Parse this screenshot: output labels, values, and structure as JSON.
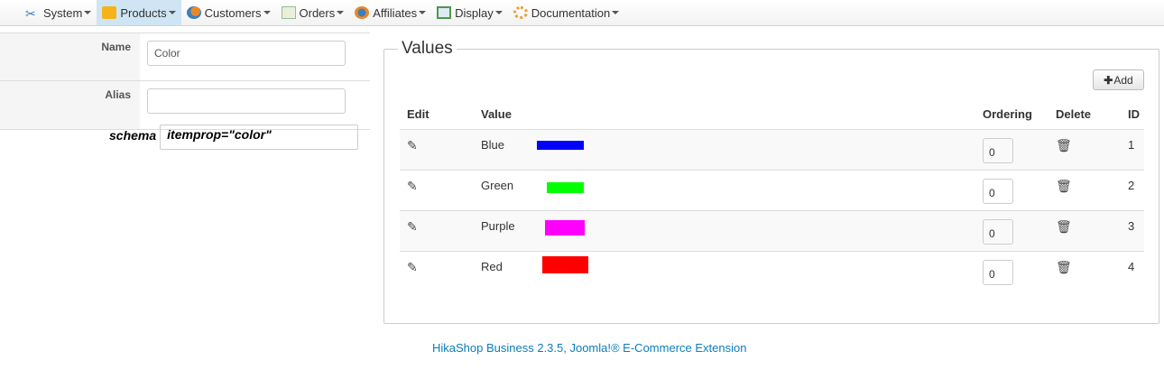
{
  "menu": [
    {
      "label": "System",
      "icon": "tools-icon"
    },
    {
      "label": "Products",
      "icon": "box-icon",
      "active": true
    },
    {
      "label": "Customers",
      "icon": "users-icon"
    },
    {
      "label": "Orders",
      "icon": "order-icon"
    },
    {
      "label": "Affiliates",
      "icon": "affiliate-icon"
    },
    {
      "label": "Display",
      "icon": "display-icon"
    },
    {
      "label": "Documentation",
      "icon": "help-icon"
    }
  ],
  "form": {
    "name_label": "Name",
    "name_value": "Color",
    "alias_label": "Alias",
    "alias_value": "",
    "schema_label": "schema",
    "schema_value": "itemprop=\"color\""
  },
  "values": {
    "legend": "Values",
    "add_label": "Add",
    "headers": {
      "edit": "Edit",
      "value": "Value",
      "ordering": "Ordering",
      "delete": "Delete",
      "id": "ID"
    },
    "rows": [
      {
        "value": "Blue",
        "color": "#0000ff",
        "ordering": "0",
        "id": "1"
      },
      {
        "value": "Green",
        "color": "#00ff00",
        "ordering": "0",
        "id": "2"
      },
      {
        "value": "Purple",
        "color": "#ff00ff",
        "ordering": "0",
        "id": "3"
      },
      {
        "value": "Red",
        "color": "#ff0000",
        "ordering": "0",
        "id": "4"
      }
    ]
  },
  "footer": "HikaShop Business 2.3.5, Joomla!® E-Commerce Extension"
}
